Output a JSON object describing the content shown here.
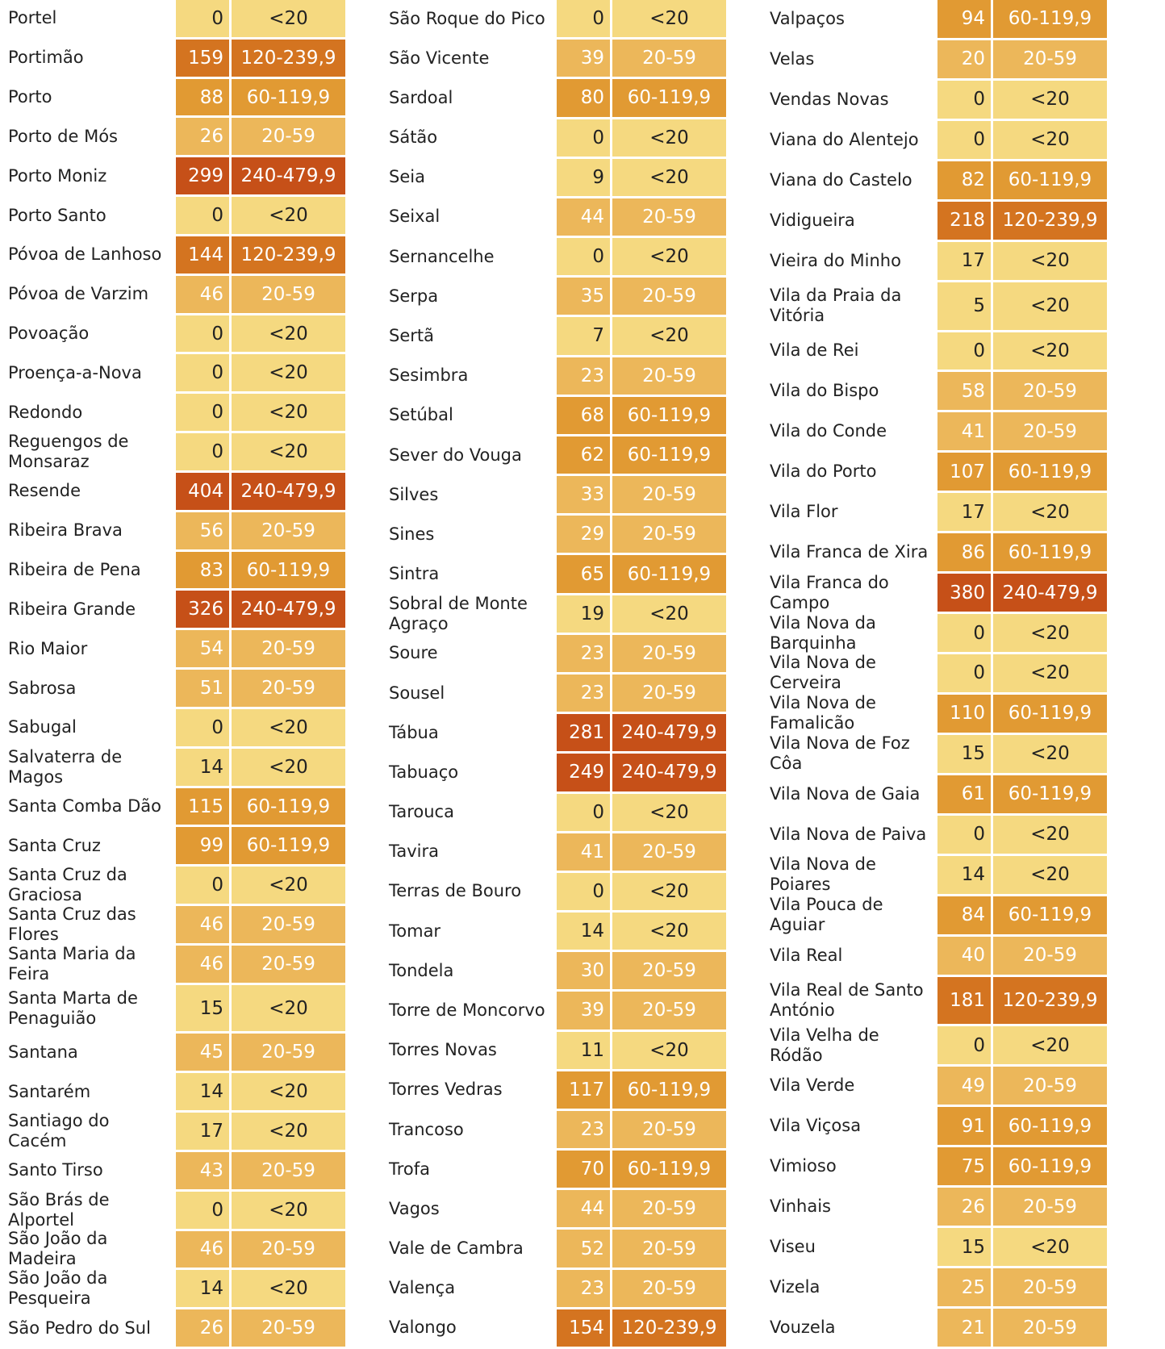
{
  "colors": {
    "<20": "#f5d980",
    "20-59": "#ecb75a",
    "60-119,9": "#e19a33",
    "120-239,9": "#d47420",
    "240-479,9": "#c65018"
  },
  "columns": [
    {
      "rows": [
        {
          "name": "Portel",
          "value": "0",
          "class": "<20"
        },
        {
          "name": "Portimão",
          "value": "159",
          "class": "120-239,9"
        },
        {
          "name": "Porto",
          "value": "88",
          "class": "60-119,9"
        },
        {
          "name": "Porto de Mós",
          "value": "26",
          "class": "20-59"
        },
        {
          "name": "Porto Moniz",
          "value": "299",
          "class": "240-479,9"
        },
        {
          "name": "Porto Santo",
          "value": "0",
          "class": "<20"
        },
        {
          "name": "Póvoa de Lanhoso",
          "value": "144",
          "class": "120-239,9"
        },
        {
          "name": "Póvoa de Varzim",
          "value": "46",
          "class": "20-59"
        },
        {
          "name": "Povoação",
          "value": "0",
          "class": "<20"
        },
        {
          "name": "Proença-a-Nova",
          "value": "0",
          "class": "<20"
        },
        {
          "name": "Redondo",
          "value": "0",
          "class": "<20"
        },
        {
          "name": "Reguengos de Monsaraz",
          "value": "0",
          "class": "<20"
        },
        {
          "name": "Resende",
          "value": "404",
          "class": "240-479,9"
        },
        {
          "name": "Ribeira Brava",
          "value": "56",
          "class": "20-59"
        },
        {
          "name": "Ribeira de Pena",
          "value": "83",
          "class": "60-119,9"
        },
        {
          "name": "Ribeira Grande",
          "value": "326",
          "class": "240-479,9"
        },
        {
          "name": "Rio Maior",
          "value": "54",
          "class": "20-59"
        },
        {
          "name": "Sabrosa",
          "value": "51",
          "class": "20-59"
        },
        {
          "name": "Sabugal",
          "value": "0",
          "class": "<20"
        },
        {
          "name": "Salvaterra de Magos",
          "value": "14",
          "class": "<20"
        },
        {
          "name": "Santa Comba Dão",
          "value": "115",
          "class": "60-119,9"
        },
        {
          "name": "Santa Cruz",
          "value": "99",
          "class": "60-119,9"
        },
        {
          "name": "Santa Cruz da Graciosa",
          "value": "0",
          "class": "<20"
        },
        {
          "name": "Santa Cruz das Flores",
          "value": "46",
          "class": "20-59"
        },
        {
          "name": "Santa Maria da Feira",
          "value": "46",
          "class": "20-59"
        },
        {
          "name": "Santa Marta de Penaguião",
          "value": "15",
          "class": "<20"
        },
        {
          "name": "Santana",
          "value": "45",
          "class": "20-59"
        },
        {
          "name": "Santarém",
          "value": "14",
          "class": "<20"
        },
        {
          "name": "Santiago do Cacém",
          "value": "17",
          "class": "<20"
        },
        {
          "name": "Santo Tirso",
          "value": "43",
          "class": "20-59"
        },
        {
          "name": "São Brás de Alportel",
          "value": "0",
          "class": "<20"
        },
        {
          "name": "São João da Madeira",
          "value": "46",
          "class": "20-59"
        },
        {
          "name": "São João da Pesqueira",
          "value": "14",
          "class": "<20"
        },
        {
          "name": "São Pedro do Sul",
          "value": "26",
          "class": "20-59"
        }
      ]
    },
    {
      "rows": [
        {
          "name": "São Roque do Pico",
          "value": "0",
          "class": "<20"
        },
        {
          "name": "São Vicente",
          "value": "39",
          "class": "20-59"
        },
        {
          "name": "Sardoal",
          "value": "80",
          "class": "60-119,9"
        },
        {
          "name": "Sátão",
          "value": "0",
          "class": "<20"
        },
        {
          "name": "Seia",
          "value": "9",
          "class": "<20"
        },
        {
          "name": "Seixal",
          "value": "44",
          "class": "20-59"
        },
        {
          "name": "Sernancelhe",
          "value": "0",
          "class": "<20"
        },
        {
          "name": "Serpa",
          "value": "35",
          "class": "20-59"
        },
        {
          "name": "Sertã",
          "value": "7",
          "class": "<20"
        },
        {
          "name": "Sesimbra",
          "value": "23",
          "class": "20-59"
        },
        {
          "name": "Setúbal",
          "value": "68",
          "class": "60-119,9"
        },
        {
          "name": "Sever do Vouga",
          "value": "62",
          "class": "60-119,9"
        },
        {
          "name": "Silves",
          "value": "33",
          "class": "20-59"
        },
        {
          "name": "Sines",
          "value": "29",
          "class": "20-59"
        },
        {
          "name": "Sintra",
          "value": "65",
          "class": "60-119,9"
        },
        {
          "name": "Sobral de Monte Agraço",
          "value": "19",
          "class": "<20"
        },
        {
          "name": "Soure",
          "value": "23",
          "class": "20-59"
        },
        {
          "name": "Sousel",
          "value": "23",
          "class": "20-59"
        },
        {
          "name": "Tábua",
          "value": "281",
          "class": "240-479,9"
        },
        {
          "name": "Tabuaço",
          "value": "249",
          "class": "240-479,9"
        },
        {
          "name": "Tarouca",
          "value": "0",
          "class": "<20"
        },
        {
          "name": "Tavira",
          "value": "41",
          "class": "20-59"
        },
        {
          "name": "Terras de Bouro",
          "value": "0",
          "class": "<20"
        },
        {
          "name": "Tomar",
          "value": "14",
          "class": "<20"
        },
        {
          "name": "Tondela",
          "value": "30",
          "class": "20-59"
        },
        {
          "name": "Torre de Moncorvo",
          "value": "39",
          "class": "20-59"
        },
        {
          "name": "Torres Novas",
          "value": "11",
          "class": "<20"
        },
        {
          "name": "Torres Vedras",
          "value": "117",
          "class": "60-119,9"
        },
        {
          "name": "Trancoso",
          "value": "23",
          "class": "20-59"
        },
        {
          "name": "Trofa",
          "value": "70",
          "class": "60-119,9"
        },
        {
          "name": "Vagos",
          "value": "44",
          "class": "20-59"
        },
        {
          "name": "Vale de Cambra",
          "value": "52",
          "class": "20-59"
        },
        {
          "name": "Valença",
          "value": "23",
          "class": "20-59"
        },
        {
          "name": "Valongo",
          "value": "154",
          "class": "120-239,9"
        }
      ]
    },
    {
      "rows": [
        {
          "name": "Valpaços",
          "value": "94",
          "class": "60-119,9"
        },
        {
          "name": "Velas",
          "value": "20",
          "class": "20-59"
        },
        {
          "name": "Vendas Novas",
          "value": "0",
          "class": "<20"
        },
        {
          "name": "Viana do Alentejo",
          "value": "0",
          "class": "<20"
        },
        {
          "name": "Viana do Castelo",
          "value": "82",
          "class": "60-119,9"
        },
        {
          "name": "Vidigueira",
          "value": "218",
          "class": "120-239,9"
        },
        {
          "name": "Vieira do Minho",
          "value": "17",
          "class": "<20"
        },
        {
          "name": "Vila da Praia da Vitória",
          "value": "5",
          "class": "<20"
        },
        {
          "name": "Vila de Rei",
          "value": "0",
          "class": "<20"
        },
        {
          "name": "Vila do Bispo",
          "value": "58",
          "class": "20-59"
        },
        {
          "name": "Vila do Conde",
          "value": "41",
          "class": "20-59"
        },
        {
          "name": "Vila do Porto",
          "value": "107",
          "class": "60-119,9"
        },
        {
          "name": "Vila Flor",
          "value": "17",
          "class": "<20"
        },
        {
          "name": "Vila Franca de Xira",
          "value": "86",
          "class": "60-119,9"
        },
        {
          "name": "Vila Franca do Campo",
          "value": "380",
          "class": "240-479,9"
        },
        {
          "name": "Vila Nova da Barquinha",
          "value": "0",
          "class": "<20"
        },
        {
          "name": "Vila Nova de Cerveira",
          "value": "0",
          "class": "<20"
        },
        {
          "name": "Vila Nova de Famalicão",
          "value": "110",
          "class": "60-119,9"
        },
        {
          "name": "Vila Nova de Foz Côa",
          "value": "15",
          "class": "<20"
        },
        {
          "name": "Vila Nova de Gaia",
          "value": "61",
          "class": "60-119,9"
        },
        {
          "name": "Vila Nova de Paiva",
          "value": "0",
          "class": "<20"
        },
        {
          "name": "Vila Nova de Poiares",
          "value": "14",
          "class": "<20"
        },
        {
          "name": "Vila Pouca de Aguiar",
          "value": "84",
          "class": "60-119,9"
        },
        {
          "name": "Vila Real",
          "value": "40",
          "class": "20-59"
        },
        {
          "name": "Vila Real de Santo António",
          "value": "181",
          "class": "120-239,9"
        },
        {
          "name": "Vila Velha de Ródão",
          "value": "0",
          "class": "<20"
        },
        {
          "name": "Vila Verde",
          "value": "49",
          "class": "20-59"
        },
        {
          "name": "Vila Viçosa",
          "value": "91",
          "class": "60-119,9"
        },
        {
          "name": "Vimioso",
          "value": "75",
          "class": "60-119,9"
        },
        {
          "name": "Vinhais",
          "value": "26",
          "class": "20-59"
        },
        {
          "name": "Viseu",
          "value": "15",
          "class": "<20"
        },
        {
          "name": "Vizela",
          "value": "25",
          "class": "20-59"
        },
        {
          "name": "Vouzela",
          "value": "21",
          "class": "20-59"
        }
      ]
    }
  ]
}
